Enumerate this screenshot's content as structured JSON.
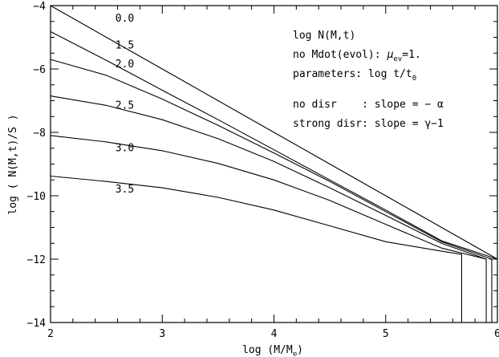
{
  "chart_data": {
    "type": "line",
    "xlabel": "log (M/M",
    "xlabel_sub": "⊙",
    "xlabel_close": ")",
    "ylabel": "log ( N(M,t)/S )",
    "xlim": [
      2,
      6
    ],
    "ylim": [
      -14,
      -4
    ],
    "xticks": [
      2,
      3,
      4,
      5,
      6
    ],
    "yticks": [
      -14,
      -12,
      -10,
      -8,
      -6,
      -4
    ],
    "grid": false,
    "annotations": {
      "line1": "log N(M,t)",
      "line2_prefix": "no Mdot(evol):",
      "line2_mu": "μ",
      "line2_sub": "ev",
      "line2_suffix": "=1.",
      "line3_prefix": "parameters: log t/t",
      "line3_sub": "0",
      "line4": "no disr    : slope = − α",
      "line5": "strong disr: slope = γ−1"
    },
    "series": [
      {
        "label": "0.0",
        "x": [
          2.0,
          2.5,
          3.0,
          3.5,
          4.0,
          4.5,
          5.0,
          5.5,
          6.0
        ],
        "y": [
          -4.0,
          -5.0,
          -6.0,
          -7.0,
          -8.0,
          -9.0,
          -10.0,
          -11.0,
          -12.0
        ],
        "label_at": [
          2.58,
          -4.5
        ]
      },
      {
        "label": "1.5",
        "x": [
          2.0,
          2.5,
          3.0,
          3.5,
          4.0,
          4.5,
          5.0,
          5.5,
          6.0
        ],
        "y": [
          -4.82,
          -5.73,
          -6.67,
          -7.6,
          -8.55,
          -9.5,
          -10.45,
          -11.42,
          -12.0
        ],
        "label_at": [
          2.58,
          -5.35
        ]
      },
      {
        "label": "2.0",
        "x": [
          2.0,
          2.5,
          3.0,
          3.5,
          4.0,
          4.5,
          5.0,
          5.5,
          5.95,
          5.95
        ],
        "y": [
          -5.7,
          -6.2,
          -6.95,
          -7.78,
          -8.65,
          -9.55,
          -10.5,
          -11.45,
          -12.0,
          -14.0
        ],
        "label_at": [
          2.58,
          -5.95
        ]
      },
      {
        "label": "2.5",
        "x": [
          2.0,
          2.5,
          3.0,
          3.5,
          4.0,
          4.5,
          5.0,
          5.5,
          5.9,
          5.9
        ],
        "y": [
          -6.85,
          -7.15,
          -7.6,
          -8.2,
          -8.92,
          -9.75,
          -10.62,
          -11.5,
          -12.0,
          -14.0
        ],
        "label_at": [
          2.58,
          -7.25
        ]
      },
      {
        "label": "3.0",
        "x": [
          2.0,
          2.5,
          3.0,
          3.5,
          4.0,
          4.5,
          5.0,
          5.5,
          5.9
        ],
        "y": [
          -8.1,
          -8.3,
          -8.58,
          -8.98,
          -9.5,
          -10.15,
          -10.9,
          -11.65,
          -12.0
        ],
        "label_at": [
          2.58,
          -8.6
        ]
      },
      {
        "label": "3.5",
        "x": [
          2.0,
          2.5,
          3.0,
          3.5,
          4.0,
          4.5,
          5.0,
          5.5,
          5.68,
          5.68
        ],
        "y": [
          -9.38,
          -9.55,
          -9.75,
          -10.05,
          -10.45,
          -10.95,
          -11.45,
          -11.75,
          -11.85,
          -14.0
        ],
        "label_at": [
          2.58,
          -9.9
        ]
      }
    ]
  }
}
